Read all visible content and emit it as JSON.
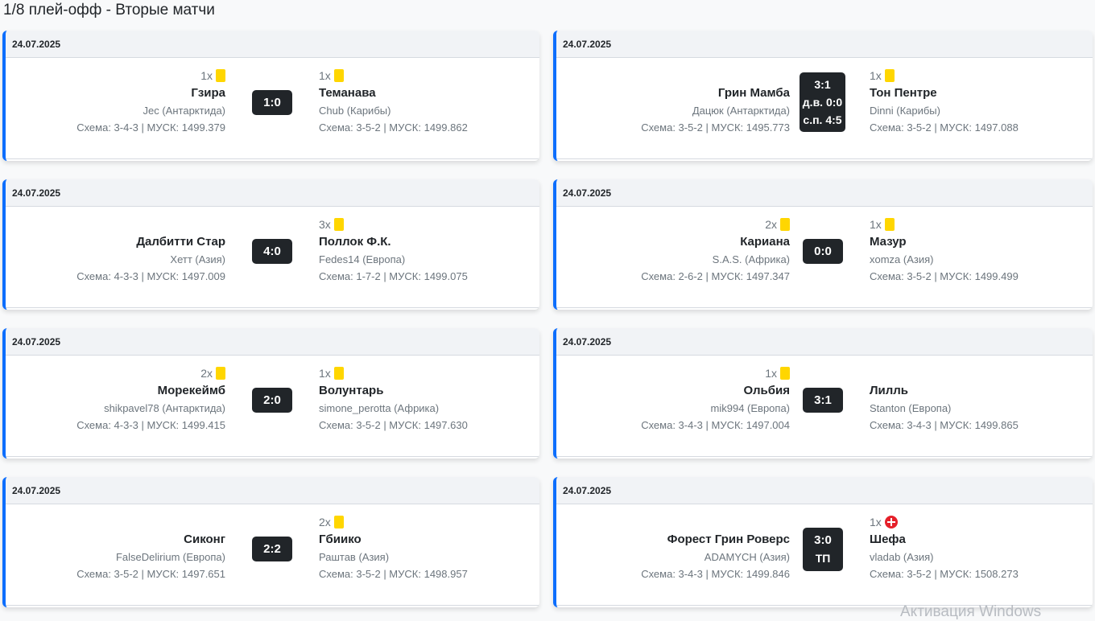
{
  "title": "1/8 плей-офф - Вторые матчи",
  "watermark": "Активация Windows",
  "matches": [
    {
      "date": "24.07.2025",
      "home": {
        "cards": "1x",
        "card_type": "yellow",
        "name": "Гзира",
        "owner": "Jec (Антарктида)",
        "scheme": "Схема: 3-4-3 | МУСК: 1499.379"
      },
      "away": {
        "cards": "1x",
        "card_type": "yellow",
        "name": "Теманава",
        "owner": "Chub (Карибы)",
        "scheme": "Схема: 3-5-2 | МУСК: 1499.862"
      },
      "score": [
        "1:0"
      ]
    },
    {
      "date": "24.07.2025",
      "home": {
        "cards": "",
        "card_type": "",
        "name": "Грин Мамба",
        "owner": "Дацюк (Антарктида)",
        "scheme": "Схема: 3-5-2 | МУСК: 1495.773"
      },
      "away": {
        "cards": "1x",
        "card_type": "yellow",
        "name": "Тон Пентре",
        "owner": "Dinni (Карибы)",
        "scheme": "Схема: 3-5-2 | МУСК: 1497.088"
      },
      "score": [
        "3:1",
        "д.в. 0:0",
        "с.п. 4:5"
      ]
    },
    {
      "date": "24.07.2025",
      "home": {
        "cards": "",
        "card_type": "",
        "name": "Далбитти Стар",
        "owner": "Хетт (Азия)",
        "scheme": "Схема: 4-3-3 | МУСК: 1497.009"
      },
      "away": {
        "cards": "3x",
        "card_type": "yellow",
        "name": "Поллок Ф.К.",
        "owner": "Fedes14 (Европа)",
        "scheme": "Схема: 1-7-2 | МУСК: 1499.075"
      },
      "score": [
        "4:0"
      ]
    },
    {
      "date": "24.07.2025",
      "home": {
        "cards": "2x",
        "card_type": "yellow",
        "name": "Кариана",
        "owner": "S.A.S. (Африка)",
        "scheme": "Схема: 2-6-2 | МУСК: 1497.347"
      },
      "away": {
        "cards": "1x",
        "card_type": "yellow",
        "name": "Мазур",
        "owner": "xomza (Азия)",
        "scheme": "Схема: 3-5-2 | МУСК: 1499.499"
      },
      "score": [
        "0:0"
      ]
    },
    {
      "date": "24.07.2025",
      "home": {
        "cards": "2x",
        "card_type": "yellow",
        "name": "Морекеймб",
        "owner": "shikpavel78 (Антарктида)",
        "scheme": "Схема: 4-3-3 | МУСК: 1499.415"
      },
      "away": {
        "cards": "1x",
        "card_type": "yellow",
        "name": "Волунтарь",
        "owner": "simone_perotta (Африка)",
        "scheme": "Схема: 3-5-2 | МУСК: 1497.630"
      },
      "score": [
        "2:0"
      ]
    },
    {
      "date": "24.07.2025",
      "home": {
        "cards": "1x",
        "card_type": "yellow",
        "name": "Ольбия",
        "owner": "mik994 (Европа)",
        "scheme": "Схема: 3-4-3 | МУСК: 1497.004"
      },
      "away": {
        "cards": "",
        "card_type": "",
        "name": "Лилль",
        "owner": "Stanton (Европа)",
        "scheme": "Схема: 3-4-3 | МУСК: 1499.865"
      },
      "score": [
        "3:1"
      ]
    },
    {
      "date": "24.07.2025",
      "home": {
        "cards": "",
        "card_type": "",
        "name": "Сиконг",
        "owner": "FalseDelirium (Европа)",
        "scheme": "Схема: 3-5-2 | МУСК: 1497.651"
      },
      "away": {
        "cards": "2x",
        "card_type": "yellow",
        "name": "Гбиико",
        "owner": "Раштав (Азия)",
        "scheme": "Схема: 3-5-2 | МУСК: 1498.957"
      },
      "score": [
        "2:2"
      ]
    },
    {
      "date": "24.07.2025",
      "home": {
        "cards": "",
        "card_type": "",
        "name": "Форест Грин Роверс",
        "owner": "ADAMYCH (Азия)",
        "scheme": "Схема: 3-4-3 | МУСК: 1499.846"
      },
      "away": {
        "cards": "1x",
        "card_type": "red-cross",
        "name": "Шефа",
        "owner": "vladab (Азия)",
        "scheme": "Схема: 3-5-2 | МУСК: 1508.273"
      },
      "score": [
        "3:0",
        "ТП"
      ]
    }
  ]
}
